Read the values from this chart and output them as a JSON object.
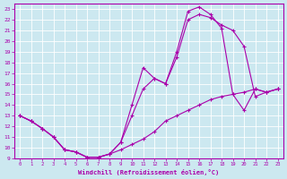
{
  "xlabel": "Windchill (Refroidissement éolien,°C)",
  "bg_color": "#cce8f0",
  "line_color": "#aa00aa",
  "xlim": [
    -0.5,
    23.5
  ],
  "ylim": [
    9,
    23.5
  ],
  "xticks": [
    0,
    1,
    2,
    3,
    4,
    5,
    6,
    7,
    8,
    9,
    10,
    11,
    12,
    13,
    14,
    15,
    16,
    17,
    18,
    19,
    20,
    21,
    22,
    23
  ],
  "yticks": [
    9,
    10,
    11,
    12,
    13,
    14,
    15,
    16,
    17,
    18,
    19,
    20,
    21,
    22,
    23
  ],
  "line1_x": [
    0,
    1,
    2,
    3,
    4,
    5,
    6,
    7,
    8,
    9,
    10,
    11,
    12,
    13,
    14,
    15,
    16,
    17,
    18,
    19,
    20,
    21,
    22,
    23
  ],
  "line1_y": [
    13.0,
    12.5,
    11.8,
    11.0,
    9.8,
    9.6,
    9.1,
    9.1,
    9.4,
    9.8,
    10.3,
    10.8,
    11.5,
    12.5,
    13.0,
    13.5,
    14.0,
    14.5,
    14.8,
    15.0,
    15.2,
    15.5,
    15.2,
    15.5
  ],
  "line2_x": [
    0,
    1,
    2,
    3,
    4,
    5,
    6,
    7,
    8,
    9,
    10,
    11,
    12,
    13,
    14,
    15,
    16,
    17,
    18,
    19,
    20,
    21,
    22,
    23
  ],
  "line2_y": [
    13.0,
    12.5,
    11.8,
    11.0,
    9.8,
    9.6,
    9.1,
    9.1,
    9.4,
    10.5,
    14.0,
    17.5,
    16.5,
    16.0,
    19.0,
    22.8,
    23.2,
    22.5,
    21.2,
    15.0,
    13.5,
    15.5,
    15.2,
    15.5
  ],
  "line3_x": [
    0,
    1,
    2,
    3,
    4,
    5,
    6,
    7,
    8,
    9,
    10,
    11,
    12,
    13,
    14,
    15,
    16,
    17,
    18,
    19,
    20,
    21,
    22,
    23
  ],
  "line3_y": [
    13.0,
    12.5,
    11.8,
    11.0,
    9.8,
    9.6,
    9.1,
    9.1,
    9.4,
    10.5,
    13.0,
    15.5,
    16.5,
    16.0,
    18.5,
    22.0,
    22.5,
    22.2,
    21.5,
    21.0,
    19.5,
    14.8,
    15.2,
    15.5
  ]
}
